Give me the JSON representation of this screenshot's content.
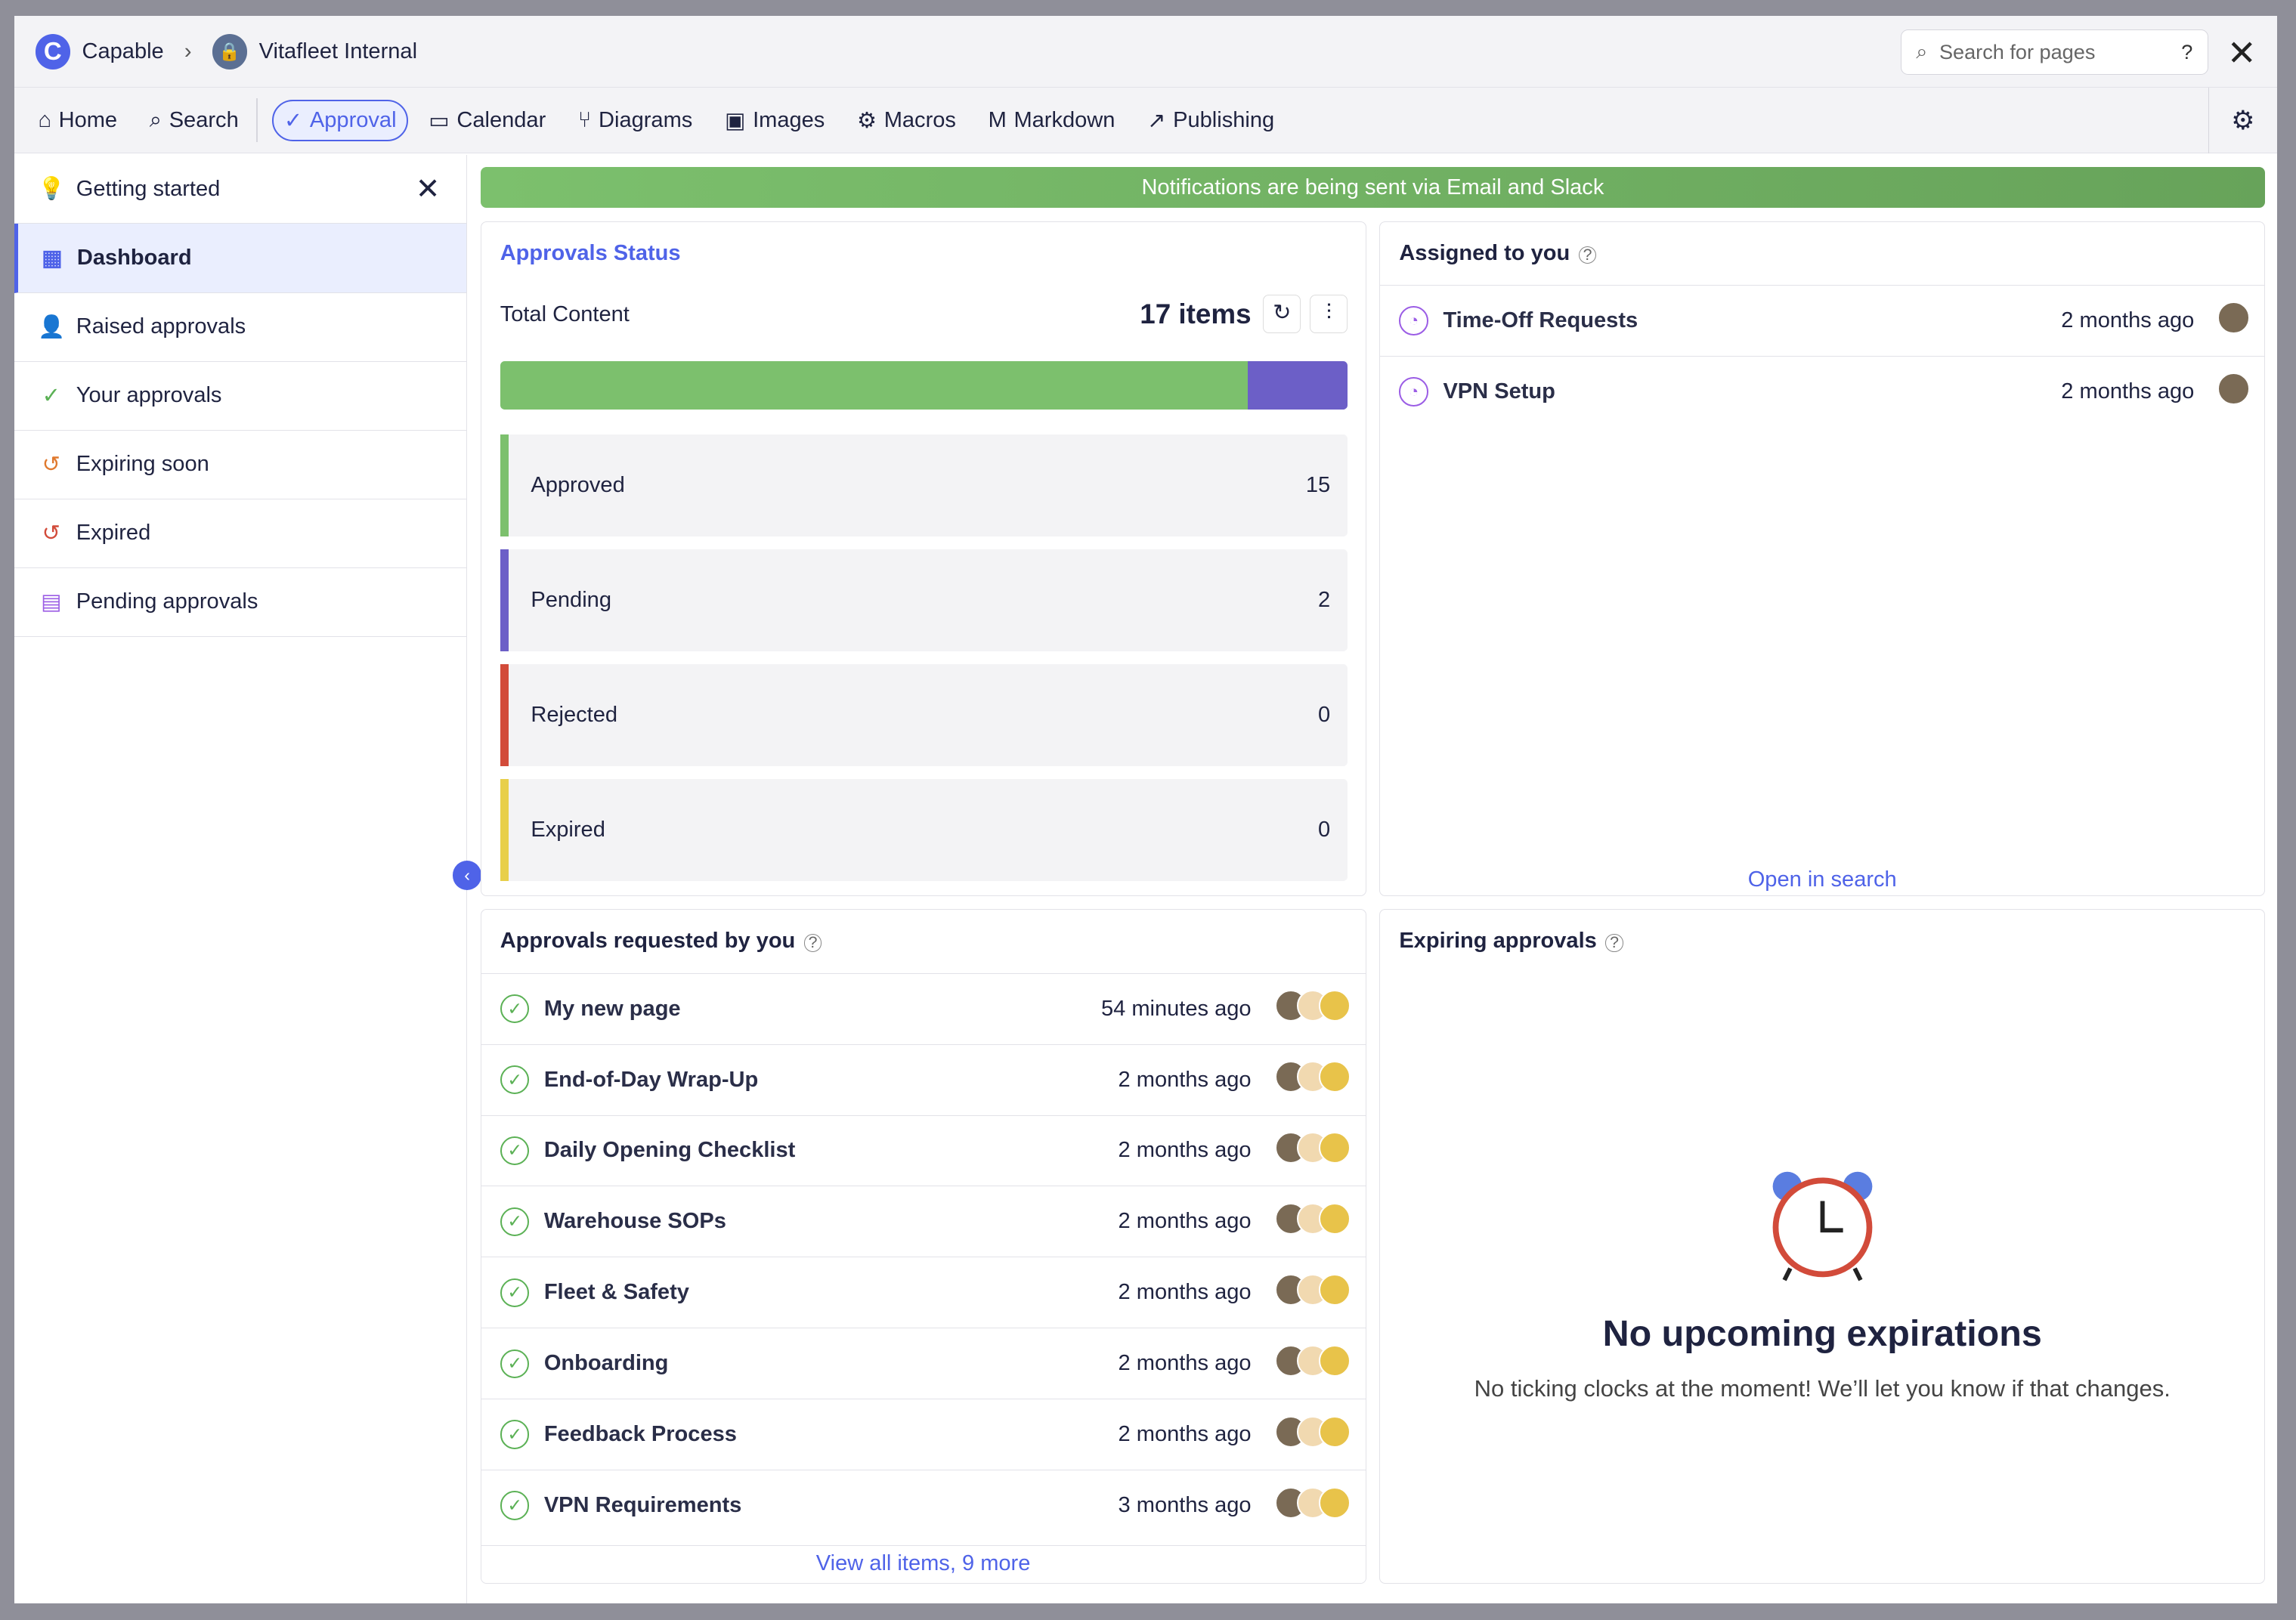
{
  "header": {
    "brand": "Capable",
    "space": "Vitafleet Internal",
    "search_placeholder": "Search for pages",
    "help": "?"
  },
  "nav": [
    {
      "label": "Home",
      "icon": "⌂"
    },
    {
      "label": "Search",
      "icon": "⌕"
    },
    {
      "label": "Approval",
      "icon": "✓"
    },
    {
      "label": "Calendar",
      "icon": "▭"
    },
    {
      "label": "Diagrams",
      "icon": "⑂"
    },
    {
      "label": "Images",
      "icon": "▣"
    },
    {
      "label": "Macros",
      "icon": "⚙"
    },
    {
      "label": "Markdown",
      "icon": "M"
    },
    {
      "label": "Publishing",
      "icon": "↗"
    }
  ],
  "sidebar": {
    "getting_started": "Getting started",
    "items": [
      {
        "label": "Dashboard",
        "icon": "▦",
        "color": "#4f63e8"
      },
      {
        "label": "Raised approvals",
        "icon": "👤",
        "color": "#4f63e8"
      },
      {
        "label": "Your approvals",
        "icon": "✓",
        "color": "#5bb155"
      },
      {
        "label": "Expiring soon",
        "icon": "↺",
        "color": "#e07a2f"
      },
      {
        "label": "Expired",
        "icon": "↺",
        "color": "#d24b3a"
      },
      {
        "label": "Pending approvals",
        "icon": "▤",
        "color": "#9b5de5"
      }
    ]
  },
  "banner": "Notifications are being sent via Email and Slack",
  "status": {
    "title": "Approvals Status",
    "total_label": "Total Content",
    "total": "17 items",
    "approved_fraction": 0.882,
    "items": [
      {
        "label": "Approved",
        "count": "15",
        "color": "#7cc06d"
      },
      {
        "label": "Pending",
        "count": "2",
        "color": "#6c5fc7"
      },
      {
        "label": "Rejected",
        "count": "0",
        "color": "#d24b3a"
      },
      {
        "label": "Expired",
        "count": "0",
        "color": "#e8cf4a"
      }
    ]
  },
  "assigned": {
    "title": "Assigned to you",
    "items": [
      {
        "title": "Time-Off Requests",
        "time": "2 months ago"
      },
      {
        "title": "VPN Setup",
        "time": "2 months ago"
      }
    ],
    "link": "Open in search"
  },
  "requested": {
    "title": "Approvals requested by you",
    "items": [
      {
        "title": "My new page",
        "time": "54 minutes ago"
      },
      {
        "title": "End-of-Day Wrap-Up",
        "time": "2 months ago"
      },
      {
        "title": "Daily Opening Checklist",
        "time": "2 months ago"
      },
      {
        "title": "Warehouse SOPs",
        "time": "2 months ago"
      },
      {
        "title": "Fleet & Safety",
        "time": "2 months ago"
      },
      {
        "title": "Onboarding",
        "time": "2 months ago"
      },
      {
        "title": "Feedback Process",
        "time": "2 months ago"
      },
      {
        "title": "VPN Requirements",
        "time": "3 months ago"
      }
    ],
    "link": "View all items, 9 more"
  },
  "expiring": {
    "title": "Expiring approvals",
    "empty_title": "No upcoming expirations",
    "empty_text": "No ticking clocks at the moment! We’ll let you know if that changes."
  }
}
